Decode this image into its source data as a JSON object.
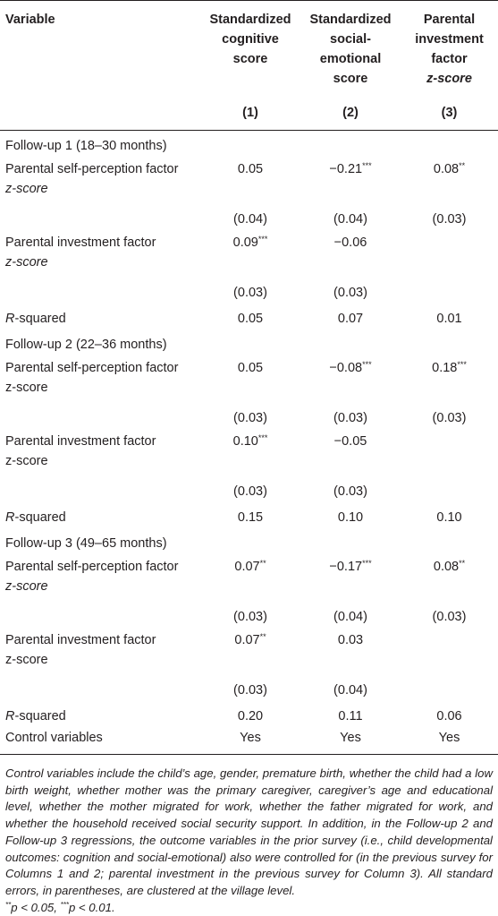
{
  "header": {
    "variable": "Variable",
    "col1": [
      "Standardized",
      "cognitive",
      "score"
    ],
    "col2": [
      "Standardized",
      "social-",
      "emotional",
      "score"
    ],
    "col3": [
      "Parental",
      "investment",
      "factor"
    ],
    "col3_italic": "z-score",
    "col_numbers": [
      "(1)",
      "(2)",
      "(3)"
    ]
  },
  "sections": [
    {
      "title": "Follow-up 1 (18–30 months)",
      "self_perception": {
        "label_line1": "Parental self-perception factor",
        "label_line2": "z-score",
        "label_line2_italic": true,
        "values": [
          "0.05",
          "−0.21",
          "0.08"
        ],
        "stars": [
          "",
          "***",
          "**"
        ],
        "se": [
          "(0.04)",
          "(0.04)",
          "(0.03)"
        ]
      },
      "investment": {
        "label_line1": "Parental investment factor",
        "label_line2": "z-score",
        "label_line2_italic": true,
        "values": [
          "0.09",
          "−0.06",
          ""
        ],
        "stars": [
          "***",
          "",
          ""
        ],
        "se": [
          "(0.03)",
          "(0.03)",
          ""
        ]
      },
      "rsq_label": "R",
      "rsq_suffix": "-squared",
      "rsq": [
        "0.05",
        "0.07",
        "0.01"
      ]
    },
    {
      "title": "Follow-up 2 (22–36 months)",
      "self_perception": {
        "label_line1": "Parental self-perception factor",
        "label_line2": "z-score",
        "label_line2_italic": false,
        "values": [
          "0.05",
          "−0.08",
          "0.18"
        ],
        "stars": [
          "",
          "***",
          "***"
        ],
        "se": [
          "(0.03)",
          "(0.03)",
          "(0.03)"
        ]
      },
      "investment": {
        "label_line1": "Parental investment factor",
        "label_line2": "z-score",
        "label_line2_italic": false,
        "values": [
          "0.10",
          "−0.05",
          ""
        ],
        "stars": [
          "***",
          "",
          ""
        ],
        "se": [
          "(0.03)",
          "(0.03)",
          ""
        ]
      },
      "rsq_label": "R",
      "rsq_suffix": "-squared",
      "rsq": [
        "0.15",
        "0.10",
        "0.10"
      ]
    },
    {
      "title": "Follow-up 3 (49–65 months)",
      "self_perception": {
        "label_line1": "Parental self-perception factor",
        "label_line2": "z-score",
        "label_line2_italic": true,
        "values": [
          "0.07",
          "−0.17",
          "0.08"
        ],
        "stars": [
          "**",
          "***",
          "**"
        ],
        "se": [
          "(0.03)",
          "(0.04)",
          "(0.03)"
        ]
      },
      "investment": {
        "label_line1": "Parental investment factor",
        "label_line2": "z-score",
        "label_line2_italic": false,
        "values": [
          "0.07",
          "0.03",
          ""
        ],
        "stars": [
          "**",
          "",
          ""
        ],
        "se": [
          "(0.03)",
          "(0.04)",
          ""
        ]
      },
      "rsq_label": "R",
      "rsq_suffix": "-squared",
      "rsq": [
        "0.20",
        "0.11",
        "0.06"
      ]
    }
  ],
  "controls": {
    "label": "Control variables",
    "values": [
      "Yes",
      "Yes",
      "Yes"
    ]
  },
  "note": "Control variables include the child’s age, gender, premature birth, whether the child had a low birth weight, whether mother was the primary caregiver, caregiver’s age and educational level, whether the mother migrated for work, whether the father migrated for work, and whether the household received social security support. In addition, in the Follow-up 2 and Follow-up 3 regressions, the outcome variables in the prior survey (i.e., child developmental outcomes: cognition and social-emotional) also were controlled for (in the previous survey for Columns 1 and 2; parental investment in the previous survey for Column 3). All standard errors, in parentheses, are clustered at the village level.",
  "significance": {
    "a_stars": "**",
    "a_text": "p < 0.05, ",
    "b_stars": "***",
    "b_text": "p < 0.01."
  }
}
